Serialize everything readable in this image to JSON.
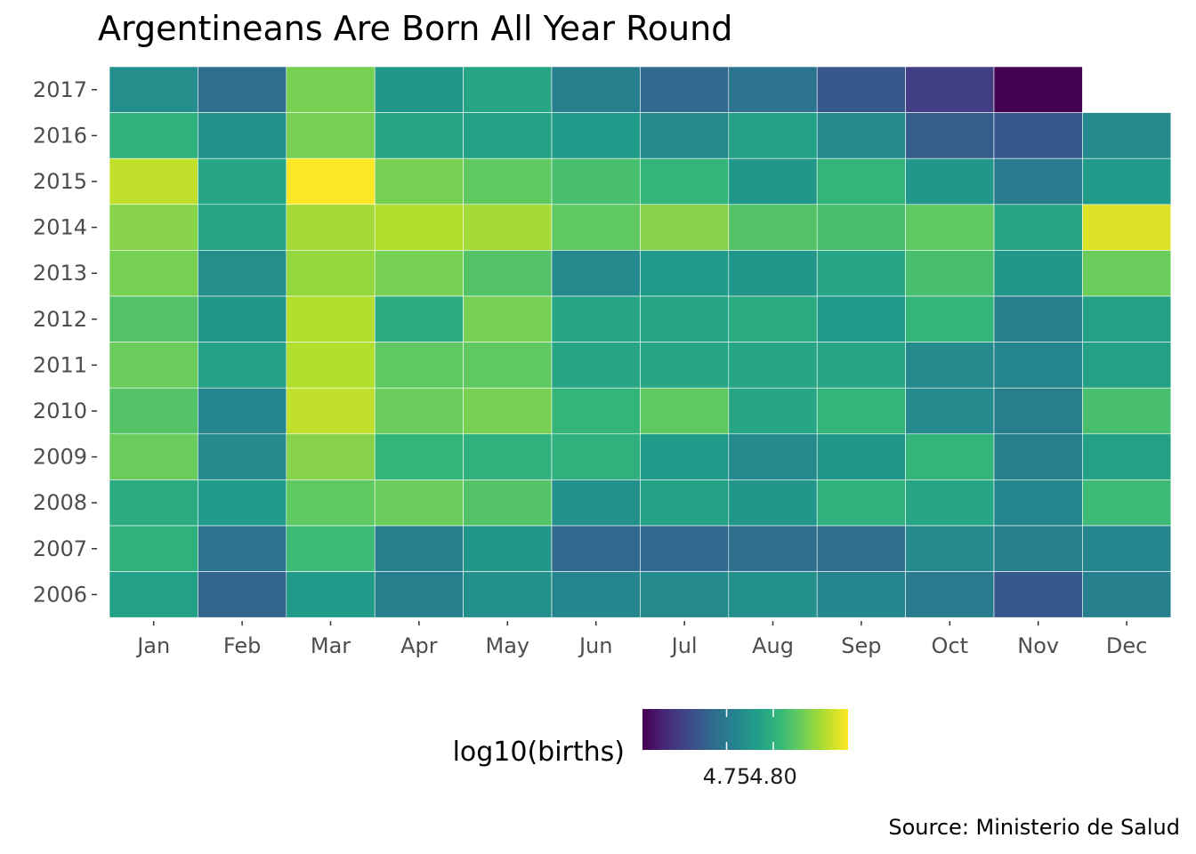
{
  "chart_data": {
    "type": "heatmap",
    "title": "Argentineans Are Born All Year Round",
    "caption": "Source: Ministerio de Salud",
    "x": [
      "Jan",
      "Feb",
      "Mar",
      "Apr",
      "May",
      "Jun",
      "Jul",
      "Aug",
      "Sep",
      "Oct",
      "Nov",
      "Dec"
    ],
    "y": [
      "2017",
      "2016",
      "2015",
      "2014",
      "2013",
      "2012",
      "2011",
      "2010",
      "2009",
      "2008",
      "2007",
      "2006"
    ],
    "values": [
      [
        4.768,
        4.74,
        4.835,
        4.775,
        4.79,
        4.755,
        4.735,
        4.745,
        4.72,
        4.7,
        4.66,
        null
      ],
      [
        4.8,
        4.77,
        4.835,
        4.79,
        4.785,
        4.78,
        4.765,
        4.785,
        4.765,
        4.725,
        4.72,
        4.765
      ],
      [
        4.86,
        4.79,
        4.88,
        4.835,
        4.825,
        4.815,
        4.805,
        4.775,
        4.805,
        4.775,
        4.75,
        4.78
      ],
      [
        4.84,
        4.79,
        4.85,
        4.855,
        4.85,
        4.825,
        4.84,
        4.82,
        4.815,
        4.825,
        4.79,
        4.87
      ],
      [
        4.835,
        4.768,
        4.845,
        4.835,
        4.82,
        4.765,
        4.78,
        4.775,
        4.79,
        4.815,
        4.775,
        4.83
      ],
      [
        4.82,
        4.775,
        4.855,
        4.795,
        4.835,
        4.79,
        4.79,
        4.795,
        4.78,
        4.805,
        4.755,
        4.785
      ],
      [
        4.83,
        4.785,
        4.855,
        4.825,
        4.825,
        4.79,
        4.79,
        4.79,
        4.79,
        4.765,
        4.76,
        4.785
      ],
      [
        4.82,
        4.76,
        4.86,
        4.83,
        4.835,
        4.805,
        4.825,
        4.79,
        4.805,
        4.765,
        4.755,
        4.815
      ],
      [
        4.83,
        4.765,
        4.84,
        4.805,
        4.8,
        4.8,
        4.78,
        4.765,
        4.775,
        4.805,
        4.755,
        4.785
      ],
      [
        4.795,
        4.78,
        4.825,
        4.83,
        4.82,
        4.77,
        4.785,
        4.775,
        4.8,
        4.79,
        4.76,
        4.81
      ],
      [
        4.8,
        4.745,
        4.81,
        4.755,
        4.775,
        4.735,
        4.735,
        4.74,
        4.74,
        4.765,
        4.755,
        4.76
      ],
      [
        4.785,
        4.73,
        4.78,
        4.755,
        4.77,
        4.76,
        4.765,
        4.77,
        4.76,
        4.75,
        4.72,
        4.755
      ]
    ],
    "legend": {
      "title": "log10(births)",
      "ticks": [
        "4.75",
        "4.80"
      ],
      "tick_values": [
        4.75,
        4.8
      ],
      "min": 4.66,
      "max": 4.88,
      "placement": "bottom",
      "palette": [
        "#440154",
        "#482878",
        "#3e4a89",
        "#31688e",
        "#26828e",
        "#1f9e89",
        "#35b779",
        "#6dcd59",
        "#b4de2c",
        "#fde725"
      ]
    },
    "grid": false
  }
}
